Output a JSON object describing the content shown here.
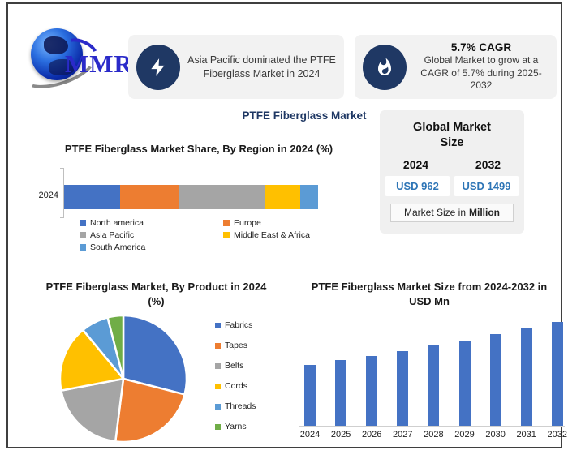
{
  "logo": {
    "text": "MMR"
  },
  "header": {
    "callout1": {
      "icon": "lightning-icon",
      "text": "Asia Pacific dominated the PTFE Fiberglass Market in 2024"
    },
    "callout2": {
      "icon": "flame-icon",
      "title": "5.7% CAGR",
      "text": "Global Market to grow at a CAGR of 5.7% during 2025-2032"
    }
  },
  "page_title": "PTFE Fiberglass Market",
  "global_market_size": {
    "title": "Global Market Size",
    "years": [
      {
        "year": "2024",
        "value": "USD 962"
      },
      {
        "year": "2032",
        "value": "USD 1499"
      }
    ],
    "note_prefix": "Market Size in",
    "note_bold": "Million"
  },
  "colors": {
    "navy": "#1f3864",
    "accent_blue": "#2e75b6",
    "bar_blue": "#4472c4"
  },
  "chart_data": [
    {
      "type": "bar",
      "subtype": "horizontal-stacked",
      "title": "PTFE Fiberglass Market Share, By Region in 2024 (%)",
      "categories": [
        "2024"
      ],
      "series": [
        {
          "name": "North america",
          "value": 22,
          "color": "#4472C4"
        },
        {
          "name": "Europe",
          "value": 23,
          "color": "#ED7D31"
        },
        {
          "name": "Asia Pacific",
          "value": 34,
          "color": "#A5A5A5"
        },
        {
          "name": "Middle East & Africa",
          "value": 14,
          "color": "#FFC000"
        },
        {
          "name": "South America",
          "value": 7,
          "color": "#5B9BD5"
        }
      ],
      "xlim": [
        0,
        100
      ],
      "legend_position": "bottom"
    },
    {
      "type": "pie",
      "title": "PTFE Fiberglass Market, By Product in 2024 (%)",
      "labels": [
        "Fabrics",
        "Tapes",
        "Belts",
        "Cords",
        "Threads",
        "Yarns"
      ],
      "values": [
        29,
        23,
        20,
        17,
        7,
        4
      ],
      "colors": [
        "#4472C4",
        "#ED7D31",
        "#A5A5A5",
        "#FFC000",
        "#5B9BD5",
        "#70AD47"
      ],
      "legend_position": "right"
    },
    {
      "type": "bar",
      "title": "PTFE Fiberglass Market Size from 2024-2032 in USD Mn",
      "categories": [
        "2024",
        "2025",
        "2026",
        "2027",
        "2028",
        "2029",
        "2030",
        "2031",
        "2032"
      ],
      "values": [
        962,
        1017,
        1075,
        1136,
        1201,
        1270,
        1342,
        1419,
        1499
      ],
      "bar_color": "#4472C4",
      "ylabel": "USD Mn",
      "grid": false
    }
  ]
}
